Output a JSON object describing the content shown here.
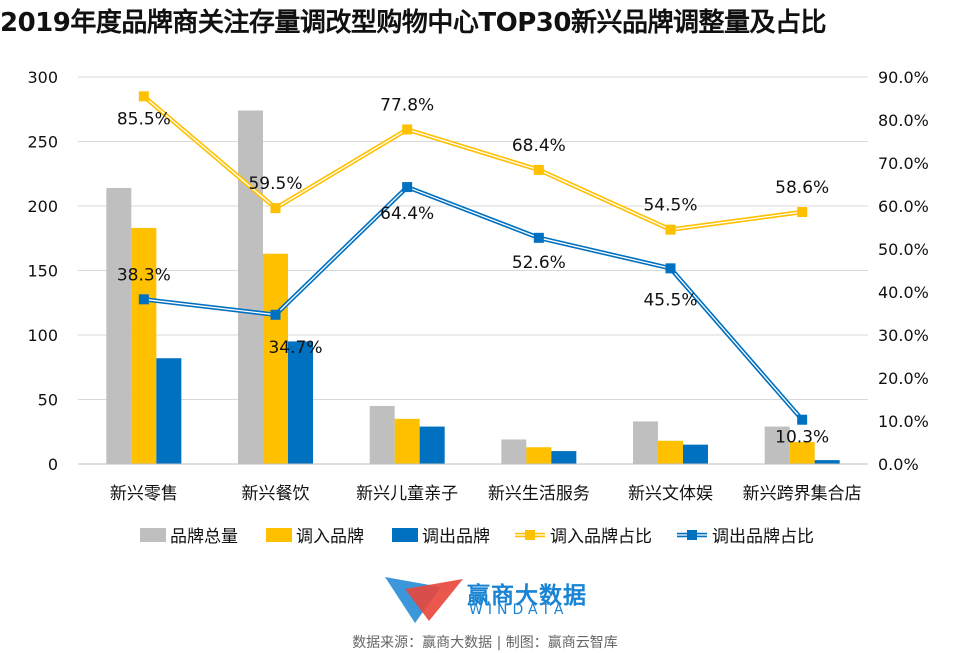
{
  "title": "2019年度品牌商关注存量调改型购物中心TOP30新兴品牌调整量及占比",
  "chart_data": {
    "type": "bar",
    "categories": [
      "新兴零售",
      "新兴餐饮",
      "新兴儿童亲子",
      "新兴生活服务",
      "新兴文体娱",
      "新兴跨界集合店"
    ],
    "series": [
      {
        "name": "品牌总量",
        "type": "bar",
        "axis": "left",
        "color": "#BFBFBF",
        "values": [
          214,
          274,
          45,
          19,
          33,
          29
        ]
      },
      {
        "name": "调入品牌",
        "type": "bar",
        "axis": "left",
        "color": "#FFC000",
        "values": [
          183,
          163,
          35,
          13,
          18,
          17
        ]
      },
      {
        "name": "调出品牌",
        "type": "bar",
        "axis": "left",
        "color": "#0070C0",
        "values": [
          82,
          95,
          29,
          10,
          15,
          3
        ]
      },
      {
        "name": "调入品牌占比",
        "type": "line",
        "axis": "right",
        "color": "#FFC000",
        "values": [
          85.5,
          59.5,
          77.8,
          68.4,
          54.5,
          58.6
        ],
        "labels": [
          "85.5%",
          "59.5%",
          "77.8%",
          "68.4%",
          "54.5%",
          "58.6%"
        ]
      },
      {
        "name": "调出品牌占比",
        "type": "line",
        "axis": "right",
        "color": "#0070C0",
        "values": [
          38.3,
          34.7,
          64.4,
          52.6,
          45.5,
          10.3
        ],
        "labels": [
          "38.3%",
          "34.7%",
          "64.4%",
          "52.6%",
          "45.5%",
          "10.3%"
        ]
      }
    ],
    "y_left": {
      "min": 0,
      "max": 300,
      "ticks": [
        "0",
        "50",
        "100",
        "150",
        "200",
        "250",
        "300"
      ]
    },
    "y_right": {
      "min": 0,
      "max": 90,
      "ticks": [
        "0.0%",
        "10.0%",
        "20.0%",
        "30.0%",
        "40.0%",
        "50.0%",
        "60.0%",
        "70.0%",
        "80.0%",
        "90.0%"
      ]
    },
    "grid": true,
    "legend_position": "bottom"
  },
  "logo": {
    "cn": "赢商大数据",
    "en": "WINDATA",
    "colors": [
      "#e8463a",
      "#1a84d4"
    ]
  },
  "footer": "数据来源：赢商大数据 | 制图：赢商云智库"
}
